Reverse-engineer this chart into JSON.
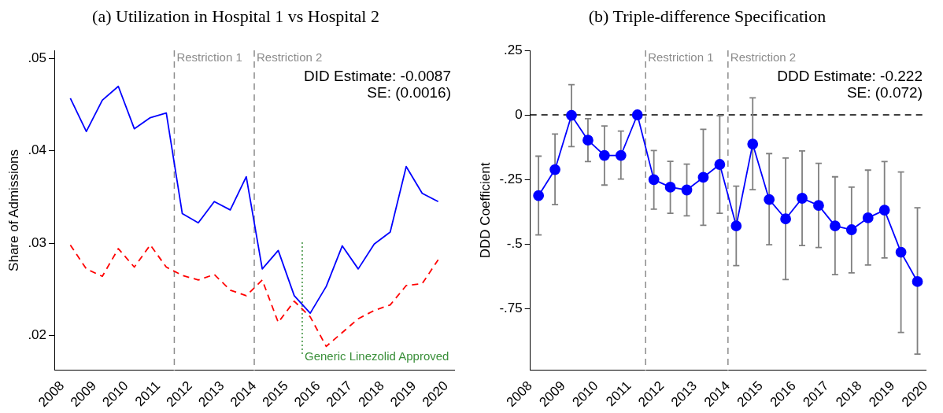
{
  "chart_data": [
    {
      "type": "line",
      "title": "(a) Utilization in Hospital 1 vs Hospital 2",
      "ylabel": "Share of Admissions",
      "x": [
        2008.25,
        2008.75,
        2009.25,
        2009.75,
        2010.25,
        2010.75,
        2011.25,
        2011.75,
        2012.25,
        2012.75,
        2013.25,
        2013.75,
        2014.25,
        2014.75,
        2015.25,
        2015.75,
        2016.25,
        2016.75,
        2017.25,
        2017.75,
        2018.25,
        2018.75,
        2019.25,
        2019.75
      ],
      "series": [
        {
          "color": "#0000ff",
          "line_style": "solid",
          "values": [
            0.0457,
            0.0421,
            0.0455,
            0.047,
            0.0424,
            0.0436,
            0.0441,
            0.0332,
            0.0322,
            0.0345,
            0.0336,
            0.0372,
            0.0272,
            0.0292,
            0.0243,
            0.0224,
            0.0253,
            0.0297,
            0.0272,
            0.0299,
            0.0312,
            0.0383,
            0.0354,
            0.0345
          ]
        },
        {
          "color": "#ff0000",
          "line_style": "dashed",
          "values": [
            0.0298,
            0.0272,
            0.0264,
            0.0294,
            0.0274,
            0.0298,
            0.0274,
            0.0265,
            0.026,
            0.0266,
            0.0249,
            0.0243,
            0.026,
            0.0214,
            0.0237,
            0.022,
            0.0188,
            0.0203,
            0.0218,
            0.0227,
            0.0233,
            0.0254,
            0.0256,
            0.0282
          ]
        }
      ],
      "xlim": [
        2007.75,
        2020.25
      ],
      "xticks": [
        2008,
        2009,
        2010,
        2011,
        2012,
        2013,
        2014,
        2015,
        2016,
        2017,
        2018,
        2019,
        2020
      ],
      "ylim": [
        0.0162,
        0.0509
      ],
      "yticks": [
        {
          "value": 0.02,
          "label": ".02"
        },
        {
          "value": 0.03,
          "label": ".03"
        },
        {
          "value": 0.04,
          "label": ".04"
        },
        {
          "value": 0.05,
          "label": ".05"
        }
      ],
      "ref_lines": [
        {
          "axis": "x",
          "value": 2011.5,
          "label": "Restriction 1",
          "color": "#8c8c8c",
          "line_style": "dashed"
        },
        {
          "axis": "x",
          "value": 2014,
          "label": "Restriction 2",
          "color": "#8c8c8c",
          "line_style": "dashed"
        },
        {
          "axis": "x",
          "value": 2015.5,
          "label": "Generic Linezolid Approved",
          "color": "#3a8f3a",
          "line_style": "dotted"
        }
      ],
      "annotations": [
        "DID Estimate: -0.0087",
        "SE: (0.0016)"
      ],
      "grid": false,
      "legend": false,
      "marker": "none"
    },
    {
      "type": "line",
      "title": "(b) Triple-difference Specification",
      "ylabel": "DDD Coefficient",
      "x": [
        2008.25,
        2008.75,
        2009.25,
        2009.75,
        2010.25,
        2010.75,
        2011.25,
        2011.75,
        2012.25,
        2012.75,
        2013.25,
        2013.75,
        2014.25,
        2014.75,
        2015.25,
        2015.75,
        2016.25,
        2016.75,
        2017.25,
        2017.75,
        2018.25,
        2018.75,
        2019.25,
        2019.75
      ],
      "series": [
        {
          "color": "#0000ff",
          "line_style": "solid",
          "values": [
            -0.313,
            -0.212,
            -0.002,
            -0.098,
            -0.157,
            -0.157,
            0,
            -0.251,
            -0.28,
            -0.291,
            -0.242,
            -0.192,
            -0.43,
            -0.113,
            -0.328,
            -0.403,
            -0.323,
            -0.351,
            -0.43,
            -0.445,
            -0.399,
            -0.369,
            -0.532,
            -0.646
          ],
          "errors": [
            [
              -0.465,
              -0.16
            ],
            [
              -0.348,
              -0.074
            ],
            [
              -0.123,
              0.117
            ],
            [
              -0.181,
              -0.015
            ],
            [
              -0.272,
              -0.043
            ],
            [
              -0.249,
              -0.063
            ],
            null,
            [
              -0.365,
              -0.138
            ],
            [
              -0.381,
              -0.18
            ],
            [
              -0.391,
              -0.191
            ],
            [
              -0.428,
              -0.056
            ],
            [
              -0.381,
              -0.003
            ],
            [
              -0.584,
              -0.276
            ],
            [
              -0.29,
              0.066
            ],
            [
              -0.503,
              -0.15
            ],
            [
              -0.638,
              -0.167
            ],
            [
              -0.506,
              -0.14
            ],
            [
              -0.514,
              -0.188
            ],
            [
              -0.619,
              -0.24
            ],
            [
              -0.612,
              -0.28
            ],
            [
              -0.582,
              -0.214
            ],
            [
              -0.554,
              -0.181
            ],
            [
              -0.843,
              -0.221
            ],
            [
              -0.927,
              -0.36
            ]
          ]
        }
      ],
      "xlim": [
        2008,
        2020
      ],
      "xticks": [
        2008,
        2009,
        2010,
        2011,
        2012,
        2013,
        2014,
        2015,
        2016,
        2017,
        2018,
        2019,
        2020
      ],
      "ylim": [
        -0.99,
        0.25
      ],
      "yticks": [
        {
          "value": -0.75,
          "label": "-.75"
        },
        {
          "value": -0.5,
          "label": "-.5"
        },
        {
          "value": -0.25,
          "label": "-.25"
        },
        0,
        {
          "value": 0.25,
          "label": ".25"
        }
      ],
      "ref_lines": [
        {
          "axis": "y",
          "value": 0,
          "color": "#000000",
          "line_style": "dashed"
        },
        {
          "axis": "x",
          "value": 2011.5,
          "label": "Restriction 1",
          "color": "#8c8c8c",
          "line_style": "dashed"
        },
        {
          "axis": "x",
          "value": 2014,
          "label": "Restriction 2",
          "color": "#8c8c8c",
          "line_style": "dashed"
        }
      ],
      "annotations": [
        "DDD Estimate: -0.222",
        "SE: (0.072)"
      ],
      "grid": false,
      "legend": false,
      "marker": "circle"
    }
  ]
}
